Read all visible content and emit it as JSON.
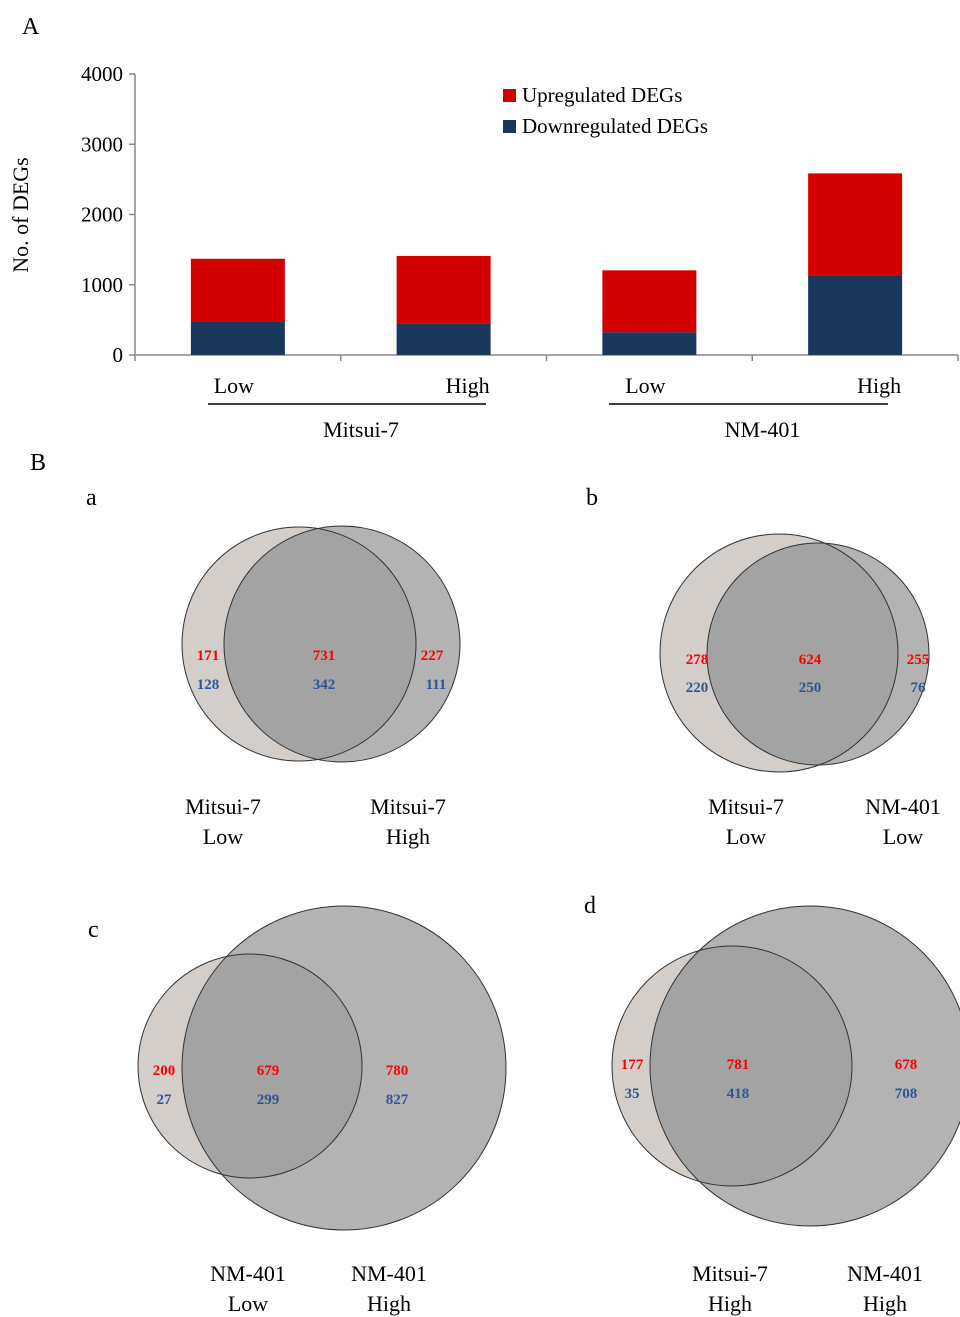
{
  "panel_labels": {
    "main_a": "A",
    "main_b": "B"
  },
  "chart_data": [
    {
      "type": "bar",
      "stacked": true,
      "ylabel": "No. of DEGs",
      "xlabel": "",
      "ylim": [
        0,
        4000
      ],
      "yticks": [
        "0",
        "1000",
        "2000",
        "3000",
        "4000"
      ],
      "categories": [
        "Low",
        "High",
        "Low",
        "High"
      ],
      "groups": [
        {
          "name": "Mitsui-7",
          "categories": [
            "Low",
            "High"
          ]
        },
        {
          "name": "NM-401",
          "categories": [
            "Low",
            "High"
          ]
        }
      ],
      "series": [
        {
          "name": "Downregulated DEGs",
          "color": "#1a375c",
          "values": [
            470,
            450,
            325,
            1125
          ]
        },
        {
          "name": "Upregulated DEGs",
          "color": "#d40000",
          "values": [
            900,
            960,
            880,
            1460
          ]
        }
      ],
      "legend": {
        "placement": "top-right"
      },
      "grid": false
    },
    {
      "type": "venn",
      "panel": "a",
      "sets": [
        {
          "line1": "Mitsui-7",
          "line2": "Low",
          "up_only": "171",
          "down_only": "128"
        },
        {
          "line1": "Mitsui-7",
          "line2": "High",
          "up_only": "227",
          "down_only": "111"
        }
      ],
      "overlap": {
        "up": "731",
        "down": "342"
      }
    },
    {
      "type": "venn",
      "panel": "b",
      "sets": [
        {
          "line1": "Mitsui-7",
          "line2": "Low",
          "up_only": "278",
          "down_only": "220"
        },
        {
          "line1": "NM-401",
          "line2": "Low",
          "up_only": "255",
          "down_only": "76"
        }
      ],
      "overlap": {
        "up": "624",
        "down": "250"
      }
    },
    {
      "type": "venn",
      "panel": "c",
      "sets": [
        {
          "line1": "NM-401",
          "line2": "Low",
          "up_only": "200",
          "down_only": "27"
        },
        {
          "line1": "NM-401",
          "line2": "High",
          "up_only": "780",
          "down_only": "827"
        }
      ],
      "overlap": {
        "up": "679",
        "down": "299"
      }
    },
    {
      "type": "venn",
      "panel": "d",
      "sets": [
        {
          "line1": "Mitsui-7",
          "line2": "High",
          "up_only": "177",
          "down_only": "35"
        },
        {
          "line1": "NM-401",
          "line2": "High",
          "up_only": "678",
          "down_only": "708"
        }
      ],
      "overlap": {
        "up": "781",
        "down": "418"
      }
    }
  ],
  "colors": {
    "up_text": "#ff0000",
    "down_text": "#2f5597",
    "left_circle": "#d3ceca",
    "right_circle": "#b3b3b3",
    "overlap": "#a3a3a3"
  }
}
